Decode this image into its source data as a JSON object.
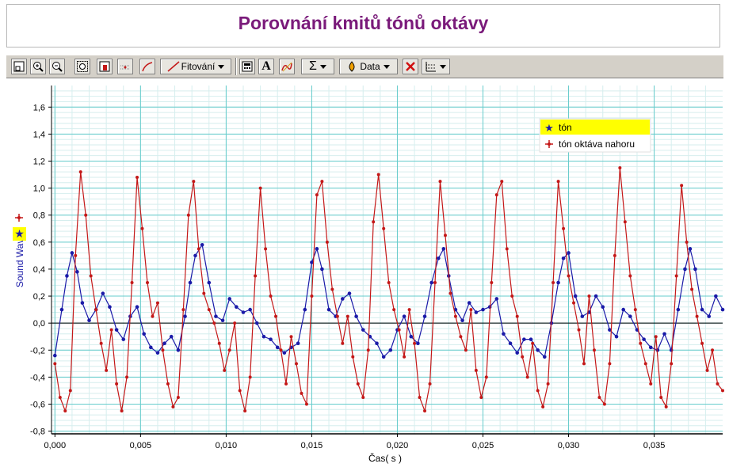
{
  "page": {
    "title": "Porovnání kmitů tónů oktávy"
  },
  "toolbar": {
    "fit_label": "Fitování",
    "data_label": "Data",
    "sigma_label": "Σ",
    "text_label": "A"
  },
  "colors": {
    "series_blue": "#1a1aa8",
    "series_red": "#c41818",
    "grid_major": "#66cccc",
    "grid_minor": "#d6eeee",
    "legend_highlight": "#ffff00",
    "title": "#7a1a7a"
  },
  "chart_data": {
    "type": "line",
    "title": "",
    "xlabel": "Čas( s )",
    "ylabel": "Sound Wave",
    "xlim": [
      -0.0002,
      0.039
    ],
    "ylim": [
      -0.82,
      1.76
    ],
    "x_ticks": [
      "0,000",
      "0,005",
      "0,010",
      "0,015",
      "0,020",
      "0,025",
      "0,030",
      "0,035"
    ],
    "x_tick_values": [
      0.0,
      0.005,
      0.01,
      0.015,
      0.02,
      0.025,
      0.03,
      0.035
    ],
    "y_ticks": [
      "1,6",
      "1,4",
      "1,2",
      "1,0",
      "0,8",
      "0,6",
      "0,4",
      "0,2",
      "0,0",
      "-0,2",
      "-0,4",
      "-0,6",
      "-0,8"
    ],
    "y_tick_values": [
      1.6,
      1.4,
      1.2,
      1.0,
      0.8,
      0.6,
      0.4,
      0.2,
      0.0,
      -0.2,
      -0.4,
      -0.6,
      -0.8
    ],
    "grid": true,
    "legend_position": "top-right",
    "series": [
      {
        "name": "tón",
        "color": "#1a1aa8",
        "x": [
          0.0,
          0.0004,
          0.0007,
          0.001,
          0.0013,
          0.0016,
          0.002,
          0.0024,
          0.0028,
          0.0032,
          0.0036,
          0.004,
          0.0044,
          0.0048,
          0.0052,
          0.0056,
          0.006,
          0.0064,
          0.0068,
          0.0072,
          0.0076,
          0.0079,
          0.0082,
          0.0086,
          0.009,
          0.0094,
          0.0098,
          0.0102,
          0.0106,
          0.011,
          0.0114,
          0.0118,
          0.0122,
          0.0126,
          0.013,
          0.0134,
          0.0138,
          0.0142,
          0.0146,
          0.015,
          0.0153,
          0.0156,
          0.016,
          0.0164,
          0.0168,
          0.0172,
          0.0176,
          0.018,
          0.0184,
          0.0188,
          0.0192,
          0.0196,
          0.02,
          0.0204,
          0.0208,
          0.0212,
          0.0216,
          0.022,
          0.0224,
          0.0227,
          0.023,
          0.0234,
          0.0238,
          0.0242,
          0.0246,
          0.025,
          0.0254,
          0.0258,
          0.0262,
          0.0266,
          0.027,
          0.0274,
          0.0278,
          0.0282,
          0.0286,
          0.029,
          0.0294,
          0.0297,
          0.03,
          0.0304,
          0.0308,
          0.0312,
          0.0316,
          0.032,
          0.0324,
          0.0328,
          0.0332,
          0.0336,
          0.034,
          0.0344,
          0.0348,
          0.0352,
          0.0356,
          0.036,
          0.0364,
          0.0368,
          0.0371,
          0.0374,
          0.0378,
          0.0382,
          0.0386,
          0.039
        ],
        "y": [
          -0.24,
          0.1,
          0.35,
          0.52,
          0.38,
          0.15,
          0.02,
          0.1,
          0.22,
          0.12,
          -0.05,
          -0.12,
          0.05,
          0.12,
          -0.08,
          -0.18,
          -0.22,
          -0.15,
          -0.1,
          -0.2,
          0.05,
          0.3,
          0.5,
          0.58,
          0.3,
          0.05,
          0.02,
          0.18,
          0.12,
          0.08,
          0.1,
          0.0,
          -0.1,
          -0.12,
          -0.18,
          -0.22,
          -0.18,
          -0.15,
          0.1,
          0.45,
          0.55,
          0.4,
          0.1,
          0.05,
          0.18,
          0.22,
          0.05,
          -0.05,
          -0.1,
          -0.15,
          -0.25,
          -0.2,
          -0.05,
          0.05,
          -0.1,
          -0.15,
          0.05,
          0.3,
          0.48,
          0.55,
          0.35,
          0.1,
          0.02,
          0.15,
          0.08,
          0.1,
          0.12,
          0.18,
          -0.08,
          -0.15,
          -0.22,
          -0.12,
          -0.12,
          -0.2,
          -0.25,
          0.0,
          0.3,
          0.48,
          0.52,
          0.2,
          0.05,
          0.08,
          0.2,
          0.12,
          -0.05,
          -0.1,
          0.1,
          0.05,
          -0.05,
          -0.12,
          -0.18,
          -0.2,
          -0.08,
          -0.2,
          0.1,
          0.4,
          0.55,
          0.4,
          0.1,
          0.05,
          0.2,
          0.1
        ]
      },
      {
        "name": "tón oktáva nahoru",
        "color": "#c41818",
        "x": [
          0.0,
          0.0003,
          0.0006,
          0.0009,
          0.0012,
          0.0015,
          0.0018,
          0.0021,
          0.0024,
          0.0027,
          0.003,
          0.0033,
          0.0036,
          0.0039,
          0.0042,
          0.0045,
          0.0048,
          0.0051,
          0.0054,
          0.0057,
          0.006,
          0.0063,
          0.0066,
          0.0069,
          0.0072,
          0.0075,
          0.0078,
          0.0081,
          0.0084,
          0.0087,
          0.009,
          0.0093,
          0.0096,
          0.0099,
          0.0102,
          0.0105,
          0.0108,
          0.0111,
          0.0114,
          0.0117,
          0.012,
          0.0123,
          0.0126,
          0.0129,
          0.0132,
          0.0135,
          0.0138,
          0.0141,
          0.0144,
          0.0147,
          0.015,
          0.0153,
          0.0156,
          0.0159,
          0.0162,
          0.0165,
          0.0168,
          0.0171,
          0.0174,
          0.0177,
          0.018,
          0.0183,
          0.0186,
          0.0189,
          0.0192,
          0.0195,
          0.0198,
          0.0201,
          0.0204,
          0.0207,
          0.021,
          0.0213,
          0.0216,
          0.0219,
          0.0222,
          0.0225,
          0.0228,
          0.0231,
          0.0234,
          0.0237,
          0.024,
          0.0243,
          0.0246,
          0.0249,
          0.0252,
          0.0255,
          0.0258,
          0.0261,
          0.0264,
          0.0267,
          0.027,
          0.0273,
          0.0276,
          0.0279,
          0.0282,
          0.0285,
          0.0288,
          0.0291,
          0.0294,
          0.0297,
          0.03,
          0.0303,
          0.0306,
          0.0309,
          0.0312,
          0.0315,
          0.0318,
          0.0321,
          0.0324,
          0.0327,
          0.033,
          0.0333,
          0.0336,
          0.0339,
          0.0342,
          0.0345,
          0.0348,
          0.0351,
          0.0354,
          0.0357,
          0.036,
          0.0363,
          0.0366,
          0.0369,
          0.0372,
          0.0375,
          0.0378,
          0.0381,
          0.0384,
          0.0387,
          0.039
        ],
        "y": [
          -0.3,
          -0.55,
          -0.65,
          -0.5,
          0.5,
          1.12,
          0.8,
          0.35,
          0.1,
          -0.15,
          -0.35,
          -0.05,
          -0.45,
          -0.65,
          -0.4,
          0.3,
          1.08,
          0.7,
          0.3,
          0.05,
          0.15,
          -0.2,
          -0.45,
          -0.62,
          -0.55,
          0.1,
          0.8,
          1.05,
          0.55,
          0.22,
          0.1,
          0.0,
          -0.15,
          -0.35,
          -0.2,
          0.0,
          -0.5,
          -0.65,
          -0.4,
          0.35,
          1.0,
          0.55,
          0.2,
          0.05,
          -0.2,
          -0.45,
          -0.1,
          -0.3,
          -0.52,
          -0.6,
          0.2,
          0.95,
          1.05,
          0.6,
          0.25,
          0.05,
          -0.15,
          0.05,
          -0.25,
          -0.45,
          -0.55,
          -0.2,
          0.75,
          1.1,
          0.7,
          0.3,
          0.1,
          -0.05,
          -0.25,
          0.1,
          -0.15,
          -0.55,
          -0.65,
          -0.45,
          0.3,
          1.05,
          0.65,
          0.22,
          0.05,
          -0.1,
          -0.2,
          0.1,
          -0.35,
          -0.55,
          -0.4,
          0.3,
          0.95,
          1.05,
          0.55,
          0.2,
          0.05,
          -0.25,
          -0.4,
          -0.15,
          -0.5,
          -0.62,
          -0.45,
          0.3,
          1.05,
          0.7,
          0.35,
          0.15,
          -0.05,
          -0.3,
          0.2,
          -0.2,
          -0.55,
          -0.6,
          -0.3,
          0.5,
          1.15,
          0.75,
          0.35,
          0.1,
          -0.15,
          -0.3,
          -0.45,
          -0.1,
          -0.55,
          -0.62,
          -0.3,
          0.35,
          1.02,
          0.6,
          0.25,
          0.05,
          -0.15,
          -0.35,
          -0.2,
          -0.45,
          -0.5
        ]
      }
    ]
  }
}
